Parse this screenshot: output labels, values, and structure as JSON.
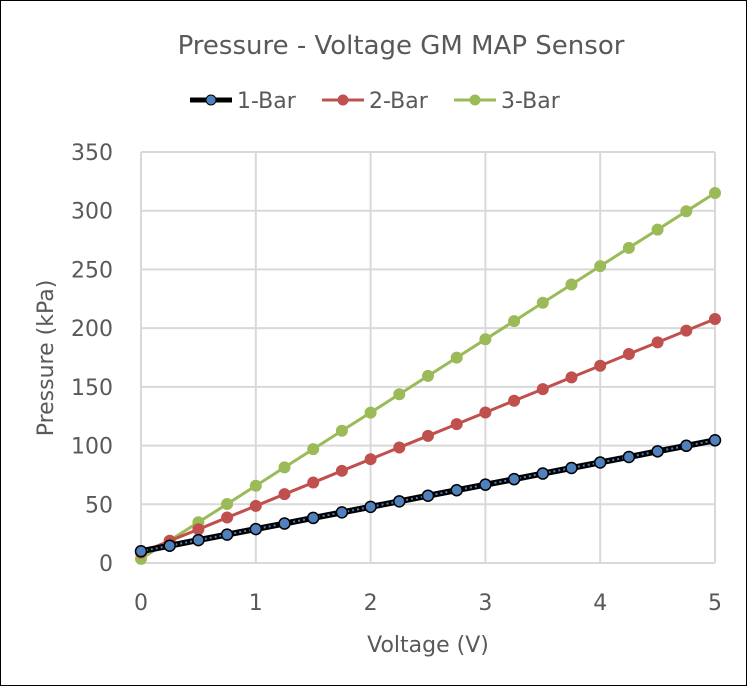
{
  "chart_data": {
    "type": "line",
    "title": "Pressure - Voltage GM MAP Sensor",
    "xlabel": "Voltage (V)",
    "ylabel": "Pressure (kPa)",
    "xlim": [
      0,
      5
    ],
    "ylim": [
      0,
      350
    ],
    "xticks": [
      0,
      1,
      2,
      3,
      4,
      5
    ],
    "yticks": [
      0,
      50,
      100,
      150,
      200,
      250,
      300,
      350
    ],
    "grid": true,
    "legend": "top",
    "x": [
      0,
      0.25,
      0.5,
      0.75,
      1,
      1.25,
      1.5,
      1.75,
      2,
      2.25,
      2.5,
      2.75,
      3,
      3.25,
      3.5,
      3.75,
      4,
      4.25,
      4.5,
      4.75,
      5
    ],
    "series": [
      {
        "name": "1-Bar",
        "line_color": "#000000",
        "marker_color": "#4F81BD",
        "values": [
          10,
          14.7,
          19.5,
          24.2,
          28.9,
          33.6,
          38.4,
          43.1,
          47.8,
          52.5,
          57.3,
          62,
          66.7,
          71.4,
          76.2,
          80.9,
          85.6,
          90.3,
          95.1,
          99.8,
          104.5
        ]
      },
      {
        "name": "2-Bar",
        "line_color": "#C0504D",
        "marker_color": "#C0504D",
        "values": [
          8.8,
          18.8,
          28.7,
          38.7,
          48.6,
          58.6,
          68.5,
          78.5,
          88.4,
          98.4,
          108.3,
          118.3,
          128.2,
          138.2,
          148.1,
          158.1,
          168,
          178,
          187.9,
          197.9,
          207.8
        ]
      },
      {
        "name": "3-Bar",
        "line_color": "#9BBB59",
        "marker_color": "#9BBB59",
        "values": [
          3.5,
          19.1,
          34.7,
          50.2,
          65.8,
          81.4,
          97,
          112.6,
          128.1,
          143.7,
          159.3,
          174.9,
          190.5,
          206,
          221.6,
          237.2,
          252.8,
          268.4,
          283.9,
          299.5,
          315.1
        ]
      }
    ]
  }
}
